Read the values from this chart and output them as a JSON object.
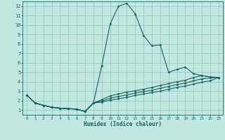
{
  "bg_color": "#c0e8e0",
  "grid_color": "#98c8c0",
  "line_color": "#1a6060",
  "xlabel": "Humidex (Indice chaleur)",
  "xlim": [
    -0.5,
    23.5
  ],
  "ylim": [
    0.5,
    12.5
  ],
  "xticks": [
    0,
    1,
    2,
    3,
    4,
    5,
    6,
    7,
    8,
    9,
    10,
    11,
    12,
    13,
    14,
    15,
    16,
    17,
    18,
    19,
    20,
    21,
    22,
    23
  ],
  "yticks": [
    1,
    2,
    3,
    4,
    5,
    6,
    7,
    8,
    9,
    10,
    11,
    12
  ],
  "lines": [
    {
      "x": [
        0,
        1,
        2,
        3,
        4,
        5,
        6,
        7,
        8,
        9,
        10,
        11,
        12,
        13,
        14,
        15,
        16,
        17,
        18,
        19,
        20,
        21,
        22,
        23
      ],
      "y": [
        2.6,
        1.75,
        1.5,
        1.3,
        1.2,
        1.15,
        1.1,
        0.85,
        1.75,
        5.7,
        10.1,
        12.0,
        12.3,
        11.2,
        8.9,
        7.8,
        7.9,
        5.0,
        5.3,
        5.55,
        4.85,
        4.65,
        4.5,
        4.45
      ]
    },
    {
      "x": [
        0,
        1,
        2,
        3,
        4,
        5,
        6,
        7,
        8,
        9,
        10,
        11,
        12,
        13,
        14,
        15,
        16,
        17,
        18,
        19,
        20,
        21,
        22,
        23
      ],
      "y": [
        2.6,
        1.75,
        1.5,
        1.3,
        1.2,
        1.15,
        1.1,
        0.85,
        1.75,
        2.1,
        2.5,
        2.7,
        2.9,
        3.05,
        3.2,
        3.4,
        3.6,
        3.8,
        4.0,
        4.15,
        4.45,
        4.65,
        4.5,
        4.45
      ]
    },
    {
      "x": [
        0,
        1,
        2,
        3,
        4,
        5,
        6,
        7,
        8,
        9,
        10,
        11,
        12,
        13,
        14,
        15,
        16,
        17,
        18,
        19,
        20,
        21,
        22,
        23
      ],
      "y": [
        2.6,
        1.75,
        1.5,
        1.3,
        1.2,
        1.15,
        1.1,
        0.85,
        1.75,
        1.95,
        2.25,
        2.45,
        2.6,
        2.8,
        2.95,
        3.1,
        3.3,
        3.5,
        3.7,
        3.85,
        4.1,
        4.3,
        4.4,
        4.45
      ]
    },
    {
      "x": [
        0,
        1,
        2,
        3,
        4,
        5,
        6,
        7,
        8,
        9,
        10,
        11,
        12,
        13,
        14,
        15,
        16,
        17,
        18,
        19,
        20,
        21,
        22,
        23
      ],
      "y": [
        2.6,
        1.75,
        1.5,
        1.3,
        1.2,
        1.15,
        1.1,
        0.85,
        1.75,
        1.85,
        2.05,
        2.2,
        2.35,
        2.55,
        2.7,
        2.85,
        3.0,
        3.2,
        3.4,
        3.55,
        3.75,
        3.95,
        4.1,
        4.45
      ]
    }
  ]
}
